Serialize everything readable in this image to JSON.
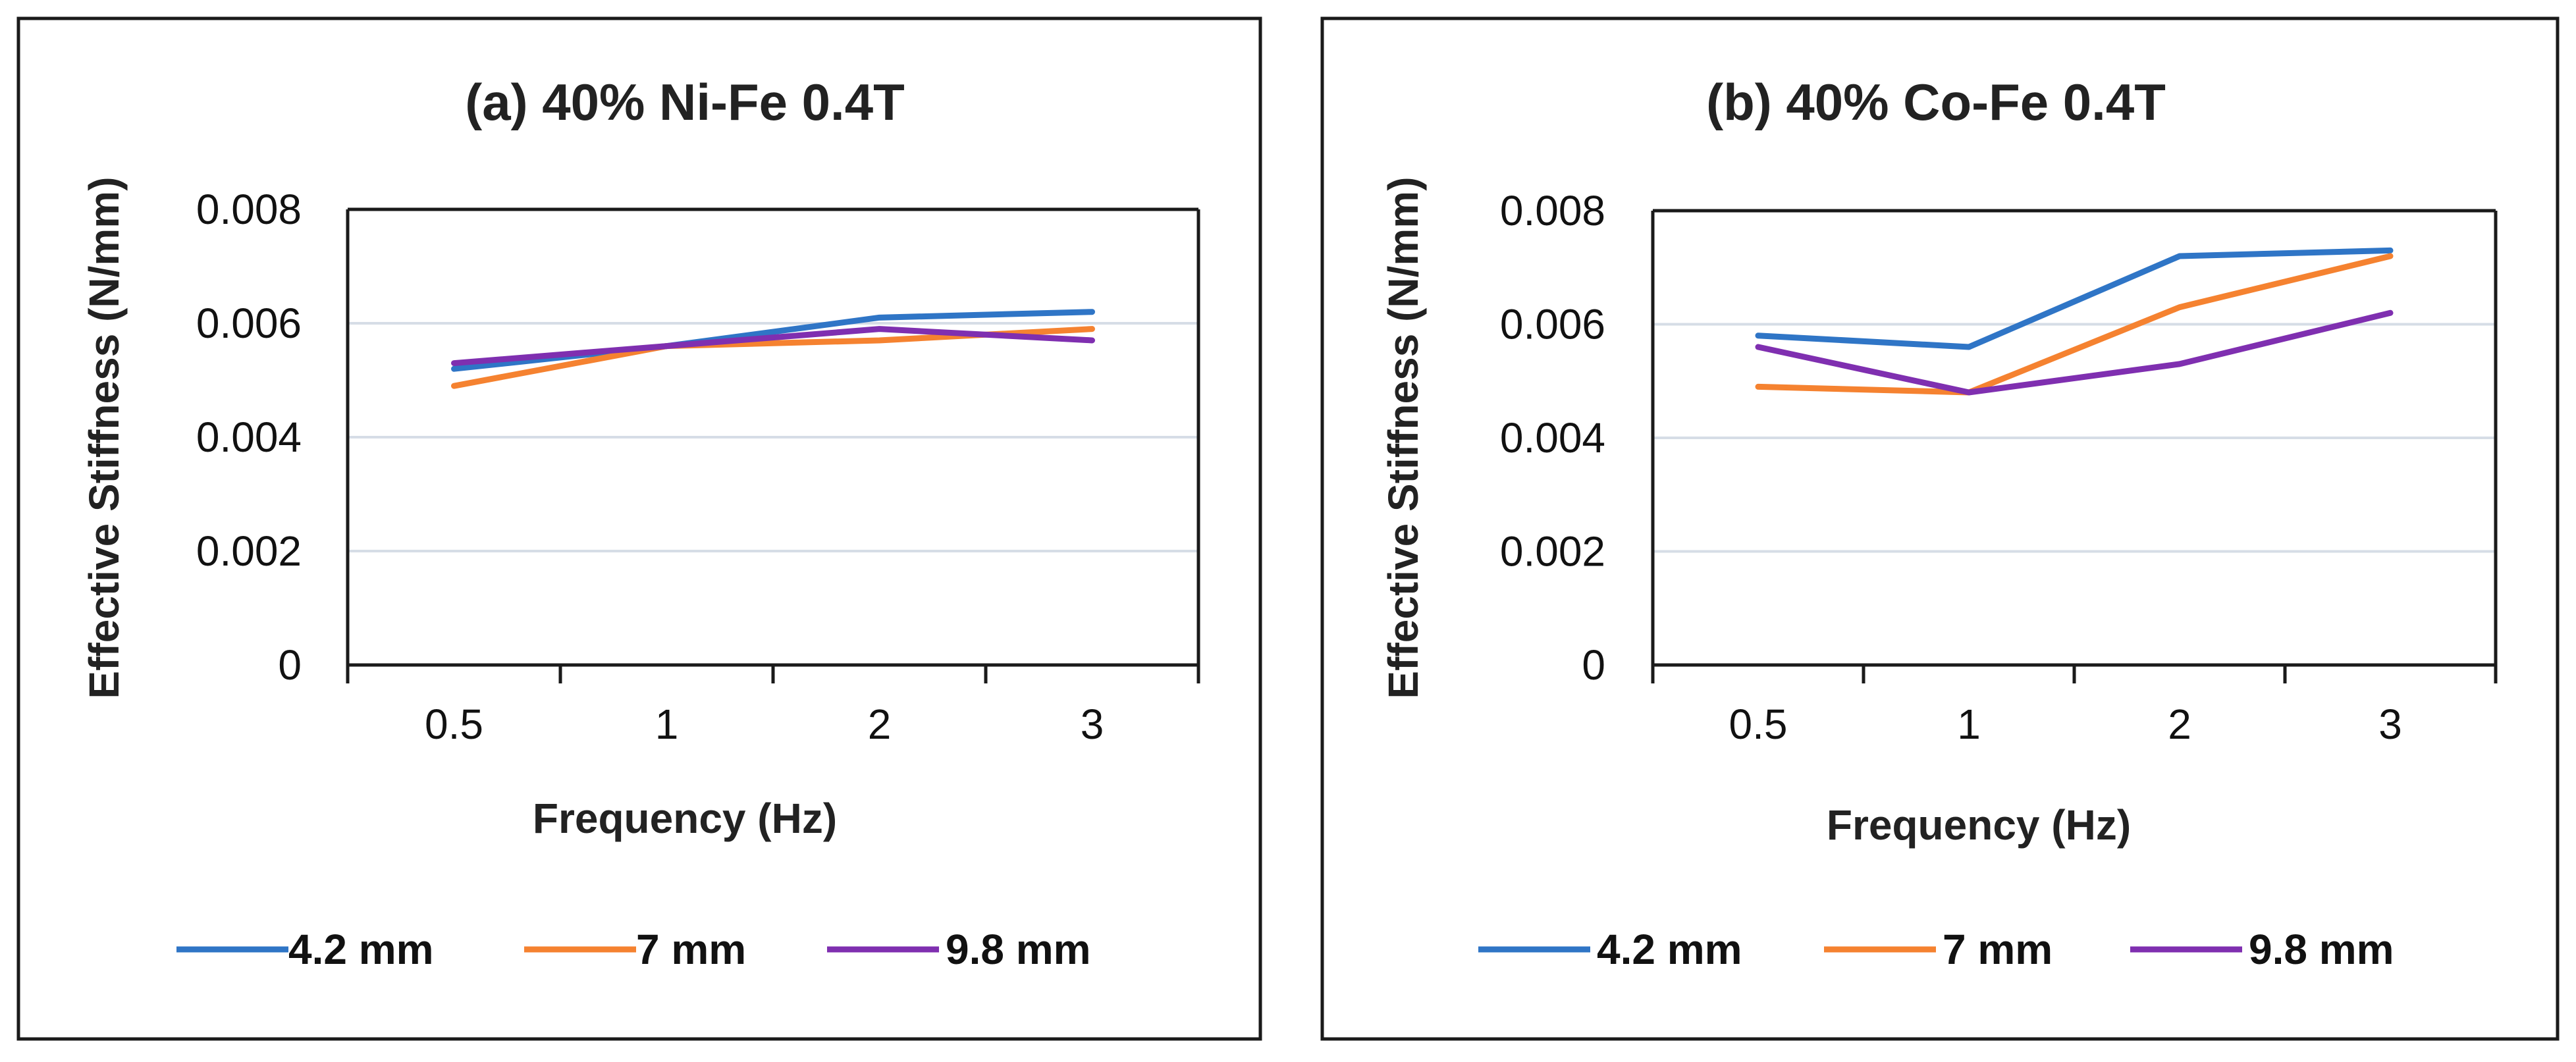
{
  "colors": {
    "series_4_2": "#2f75c6",
    "series_7": "#f58230",
    "series_9_8": "#7f2fb0",
    "grid": "#d6dde6",
    "frame": "#1a1a1a"
  },
  "chart_data": [
    {
      "type": "line",
      "title": "(a) 40% Ni-Fe 0.4T",
      "xlabel": "Frequency (Hz)",
      "ylabel": "Effective Stiffness (N/mm)",
      "categories": [
        "0.5",
        "1",
        "2",
        "3"
      ],
      "ylim": [
        0,
        0.008
      ],
      "yticks": [
        "0",
        "0.002",
        "0.004",
        "0.006",
        "0.008"
      ],
      "grid": true,
      "legend": "bottom",
      "series": [
        {
          "name": "4.2 mm",
          "color": "#2f75c6",
          "values": [
            0.0052,
            0.0056,
            0.0061,
            0.0062
          ]
        },
        {
          "name": "7 mm",
          "color": "#f58230",
          "values": [
            0.0049,
            0.0056,
            0.0057,
            0.0059
          ]
        },
        {
          "name": "9.8 mm",
          "color": "#7f2fb0",
          "values": [
            0.0053,
            0.0056,
            0.0059,
            0.0057
          ]
        }
      ]
    },
    {
      "type": "line",
      "title": "(b) 40% Co-Fe 0.4T",
      "xlabel": "Frequency (Hz)",
      "ylabel": "Effective Stiffness (N/mm)",
      "categories": [
        "0.5",
        "1",
        "2",
        "3"
      ],
      "ylim": [
        0,
        0.008
      ],
      "yticks": [
        "0",
        "0.002",
        "0.004",
        "0.006",
        "0.008"
      ],
      "grid": true,
      "legend": "bottom",
      "series": [
        {
          "name": "4.2 mm",
          "color": "#2f75c6",
          "values": [
            0.0058,
            0.0056,
            0.0072,
            0.0073
          ]
        },
        {
          "name": "7 mm",
          "color": "#f58230",
          "values": [
            0.0049,
            0.0048,
            0.0063,
            0.0072
          ]
        },
        {
          "name": "9.8 mm",
          "color": "#7f2fb0",
          "values": [
            0.0056,
            0.0048,
            0.0053,
            0.0062
          ]
        }
      ]
    }
  ]
}
